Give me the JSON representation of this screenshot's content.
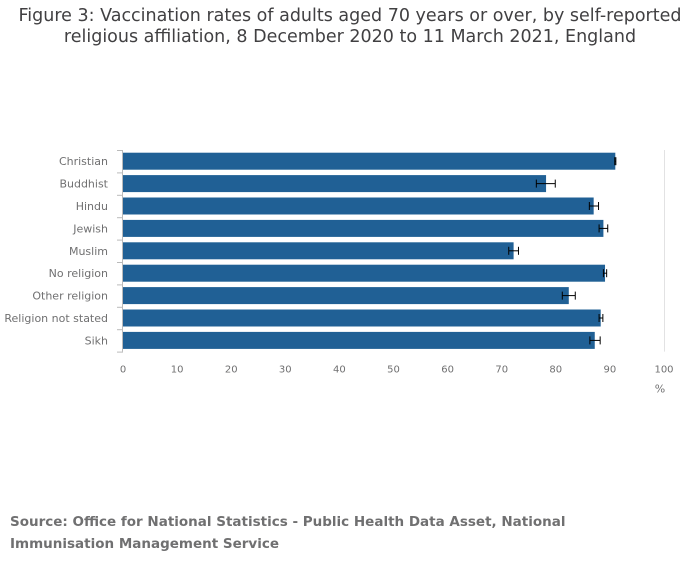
{
  "title": "Figure 3: Vaccination rates of adults aged 70 years or over, by self-reported religious affiliation, 8 December 2020 to 11 March 2021, England",
  "source": "Source: Office for National Statistics - Public Health Data Asset, National Immunisation Management Service",
  "colors": {
    "bar": "#206095",
    "axis": "#bababa",
    "grid": "#e2e2e3",
    "error": "#000000"
  },
  "chart_data": {
    "type": "bar",
    "orientation": "horizontal",
    "title": "Figure 3: Vaccination rates of adults aged 70 years or over, by self-reported religious affiliation, 8 December 2020 to 11 March 2021, England",
    "xlabel": "%",
    "ylabel": "",
    "xlim": [
      0,
      100
    ],
    "ticks": [
      0,
      10,
      20,
      30,
      40,
      50,
      60,
      70,
      80,
      90,
      100
    ],
    "grid": false,
    "categories": [
      "Christian",
      "Buddhist",
      "Hindu",
      "Jewish",
      "Muslim",
      "No religion",
      "Other religion",
      "Religion not stated",
      "Sikh"
    ],
    "values": [
      91.0,
      78.2,
      87.0,
      88.8,
      72.2,
      89.1,
      82.4,
      88.3,
      87.2
    ],
    "error_low": [
      90.9,
      76.4,
      86.2,
      88.0,
      71.3,
      88.8,
      81.2,
      88.0,
      86.3
    ],
    "error_high": [
      91.1,
      79.9,
      87.9,
      89.6,
      73.1,
      89.4,
      83.6,
      88.7,
      88.2
    ]
  }
}
